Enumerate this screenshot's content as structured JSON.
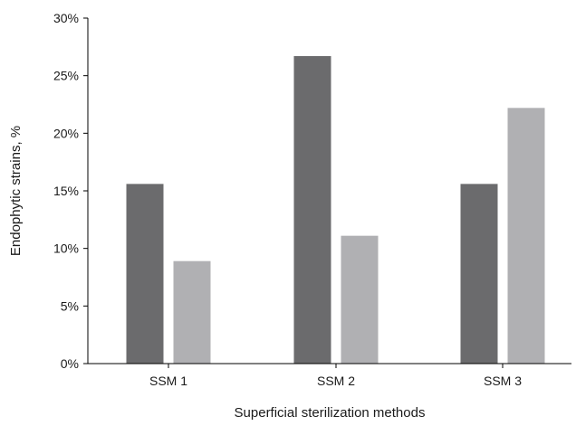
{
  "chart_data": {
    "type": "bar",
    "title": "",
    "xlabel": "Superficial sterilization methods",
    "ylabel": "Endophytic strains, %",
    "categories": [
      "SSM 1",
      "SSM 2",
      "SSM 3"
    ],
    "series": [
      {
        "values": [
          15.6,
          26.7,
          15.6
        ],
        "color": "#6b6b6d"
      },
      {
        "values": [
          8.9,
          11.1,
          22.2
        ],
        "color": "#b0b0b3"
      }
    ],
    "ylim": [
      0,
      30
    ],
    "yticks": [
      0,
      5,
      10,
      15,
      20,
      25,
      30
    ],
    "ytick_suffix": "%",
    "grid": false,
    "legend": "none"
  }
}
